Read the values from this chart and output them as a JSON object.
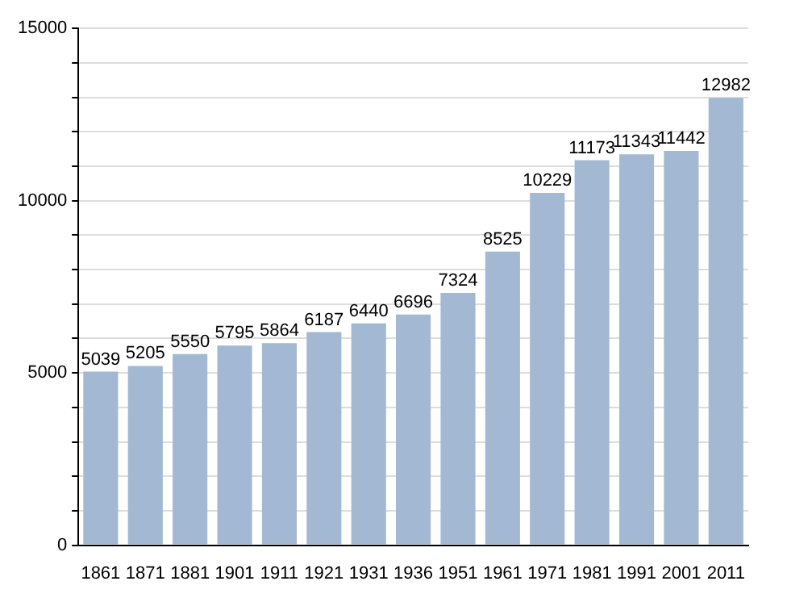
{
  "chart_data": {
    "type": "bar",
    "categories": [
      "1861",
      "1871",
      "1881",
      "1901",
      "1911",
      "1921",
      "1931",
      "1936",
      "1951",
      "1961",
      "1971",
      "1981",
      "1991",
      "2001",
      "2011"
    ],
    "values": [
      5039,
      5205,
      5550,
      5795,
      5864,
      6187,
      6440,
      6696,
      7324,
      8525,
      10229,
      11173,
      11343,
      11442,
      12982
    ],
    "color": "#a3b9d3",
    "ylim": [
      0,
      15000
    ],
    "yticks": [
      0,
      {
        "value": 1000,
        "label": null
      },
      {
        "value": 2000,
        "label": null
      },
      {
        "value": 3000,
        "label": null
      },
      {
        "value": 4000,
        "label": null
      },
      5000,
      {
        "value": 6000,
        "label": null
      },
      {
        "value": 7000,
        "label": null
      },
      {
        "value": 8000,
        "label": null
      },
      {
        "value": 9000,
        "label": null
      },
      10000,
      {
        "value": 11000,
        "label": null
      },
      {
        "value": 12000,
        "label": null
      },
      {
        "value": 13000,
        "label": null
      },
      {
        "value": 14000,
        "label": null
      },
      15000
    ],
    "grid": "y",
    "data_labels": true
  }
}
